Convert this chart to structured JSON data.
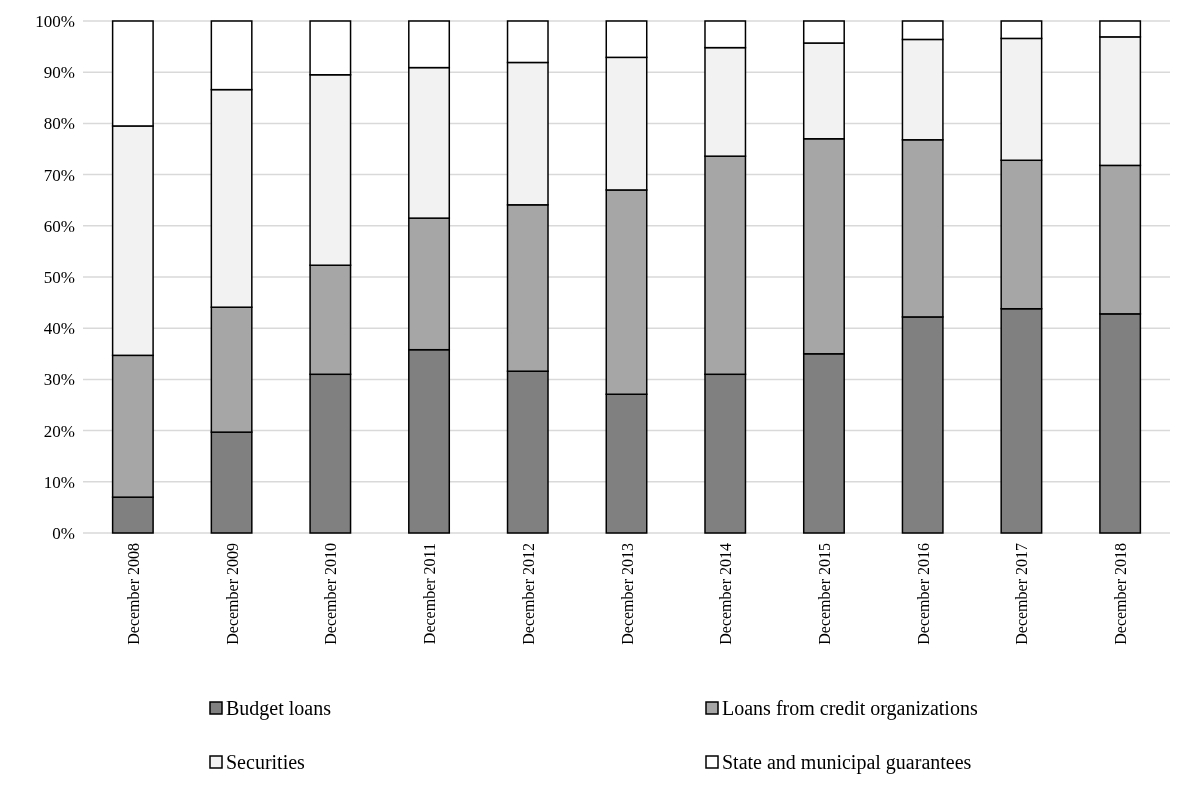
{
  "chart_data": {
    "type": "bar",
    "stacked": true,
    "categories": [
      "December 2008",
      "December 2009",
      "December 2010",
      "December 2011",
      "December 2012",
      "December 2013",
      "December 2014",
      "December 2015",
      "December 2016",
      "December 2017",
      "December 2018"
    ],
    "series": [
      {
        "name": "Budget loans",
        "color": "#808080",
        "values": [
          7,
          19.7,
          31,
          35.8,
          31.6,
          27.1,
          31,
          35,
          42.2,
          43.8,
          42.8
        ]
      },
      {
        "name": "Loans from credit organizations",
        "color": "#a6a6a6",
        "values": [
          27.7,
          24.4,
          21.3,
          25.7,
          32.5,
          39.9,
          42.6,
          42,
          34.6,
          29,
          29
        ]
      },
      {
        "name": "Securities",
        "color": "#f2f2f2",
        "values": [
          44.8,
          42.5,
          37.2,
          29.4,
          27.8,
          25.9,
          21.2,
          18.7,
          19.6,
          23.8,
          25.1
        ]
      },
      {
        "name": "State and municipal guarantees",
        "color": "#ffffff",
        "values": [
          20.5,
          13.4,
          10.5,
          9.1,
          8.1,
          7.1,
          5.2,
          4.3,
          3.6,
          3.4,
          3.1
        ]
      }
    ],
    "ylim": [
      0,
      100
    ],
    "yticks": [
      {
        "value": 0,
        "label": "0%"
      },
      {
        "value": 10,
        "label": "10%"
      },
      {
        "value": 20,
        "label": "20%"
      },
      {
        "value": 30,
        "label": "30%"
      },
      {
        "value": 40,
        "label": "40%"
      },
      {
        "value": 50,
        "label": "50%"
      },
      {
        "value": 60,
        "label": "60%"
      },
      {
        "value": 70,
        "label": "70%"
      },
      {
        "value": 80,
        "label": "80%"
      },
      {
        "value": 90,
        "label": "90%"
      },
      {
        "value": 100,
        "label": "100%"
      }
    ],
    "grid": "y",
    "legend": "bottom"
  }
}
